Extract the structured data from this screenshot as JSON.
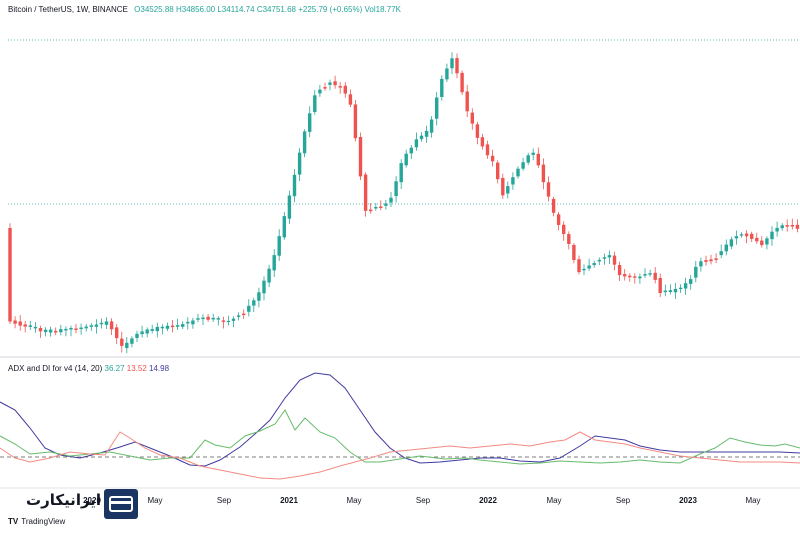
{
  "header": {
    "symbol": "Bitcoin / TetherUS, 1W, BINANCE",
    "open": "O34525.88",
    "high": "H34856.00",
    "low": "L34114.74",
    "close": "C34751.68",
    "change": "+225.79 (+0.65%)",
    "volume": "Vol18.77K"
  },
  "indicator": {
    "name": "ADX and DI for v4 (14, 20)",
    "value_plus_di": "36.27",
    "value_minus_di": "13.52",
    "value_adx": "14.98"
  },
  "time_axis": [
    {
      "label": "2020",
      "bold": true
    },
    {
      "label": "May",
      "bold": false
    },
    {
      "label": "Sep",
      "bold": false
    },
    {
      "label": "2021",
      "bold": true
    },
    {
      "label": "May",
      "bold": false
    },
    {
      "label": "Sep",
      "bold": false
    },
    {
      "label": "2022",
      "bold": true
    },
    {
      "label": "May",
      "bold": false
    },
    {
      "label": "Sep",
      "bold": false
    },
    {
      "label": "2023",
      "bold": true
    },
    {
      "label": "May",
      "bold": false
    }
  ],
  "watermark": {
    "brand_text": "ایرانیکارت",
    "tradingview_mark": "TV",
    "tradingview_label": "TradingView"
  },
  "colors": {
    "up": "#26a69a",
    "down": "#ef5350",
    "adx": "#3f3aa0",
    "plus_di": "#66bb6a",
    "minus_di": "#f28b82",
    "logo": "#1b3563"
  },
  "chart_data": [
    {
      "type": "candlestick",
      "title": "Bitcoin / TetherUS, 1W, BINANCE",
      "price_key_points": [
        {
          "x": "2020-01",
          "y": 7200
        },
        {
          "x": "2020-03",
          "y": 5000
        },
        {
          "x": "2020-05",
          "y": 9000
        },
        {
          "x": "2020-09",
          "y": 10500
        },
        {
          "x": "2021-01",
          "y": 33000
        },
        {
          "x": "2021-04",
          "y": 63000
        },
        {
          "x": "2021-07",
          "y": 31000
        },
        {
          "x": "2021-11",
          "y": 68000
        },
        {
          "x": "2022-01",
          "y": 38000
        },
        {
          "x": "2022-04",
          "y": 45000
        },
        {
          "x": "2022-06",
          "y": 19000
        },
        {
          "x": "2022-11",
          "y": 16000
        },
        {
          "x": "2023-03",
          "y": 28000
        },
        {
          "x": "2023-06",
          "y": 34751
        }
      ]
    },
    {
      "type": "line",
      "title": "ADX and DI for v4 (14, 20)",
      "series": [
        {
          "name": "ADX",
          "last": 14.98
        },
        {
          "name": "+DI",
          "last": 36.27
        },
        {
          "name": "-DI",
          "last": 13.52
        }
      ],
      "threshold": 20
    }
  ]
}
